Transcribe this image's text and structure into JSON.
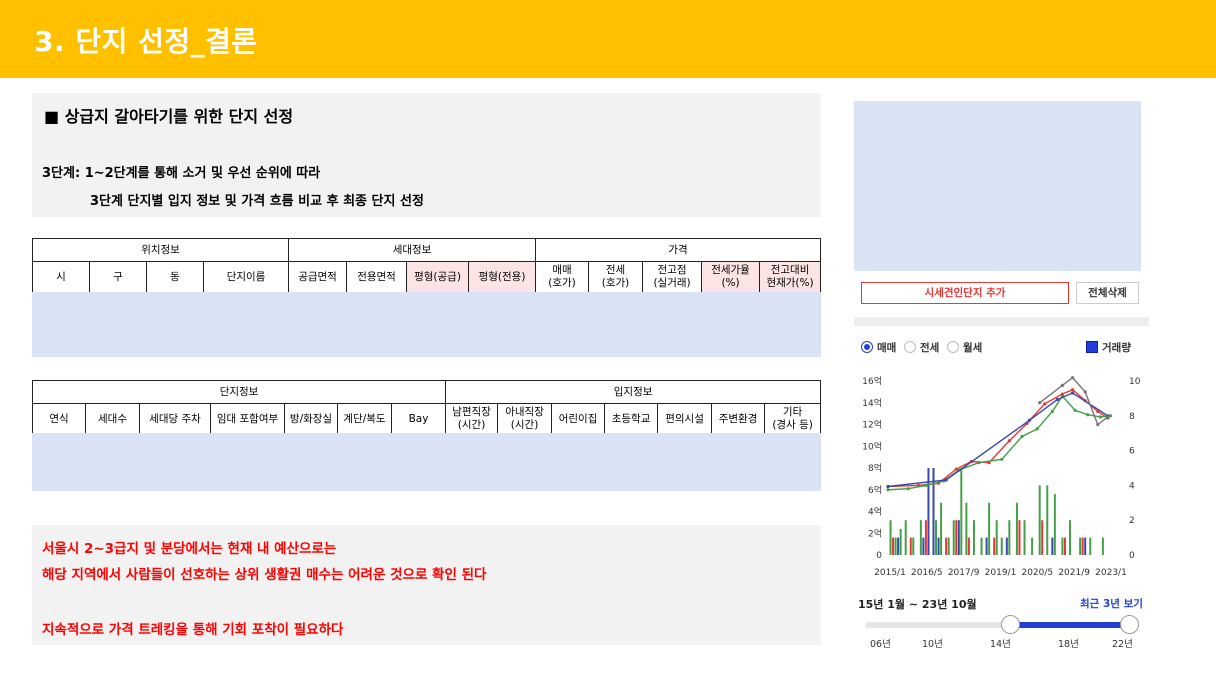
{
  "header": {
    "title": "3. 단지 선정_결론"
  },
  "section": {
    "heading": "■ 상급지 갈아타기를 위한 단지 선정",
    "step_line1": "3단계: 1~2단계를 통해 소거 및 우선 순위에 따라",
    "step_line2": "3단계 단지별 입지 정보 및 가격 흐름 비교 후 최종 단지 선정"
  },
  "table1": {
    "groups": [
      "위치정보",
      "세대정보",
      "가격"
    ],
    "columns": [
      "시",
      "구",
      "동",
      "단지이름",
      "공급면적",
      "전용면적",
      "평형(공급)",
      "평형(전용)",
      "매매\n(호가)",
      "전세\n(호가)",
      "전고점\n(실거래)",
      "전세가율\n(%)",
      "전고대비\n현재가(%)"
    ]
  },
  "table2": {
    "groups": [
      "단지정보",
      "입지정보"
    ],
    "columns": [
      "연식",
      "세대수",
      "세대당 주차",
      "임대 포함여부",
      "방/화장실",
      "계단/복도",
      "Bay",
      "남편직장\n(시간)",
      "아내직장\n(시간)",
      "어린이집",
      "초등학교",
      "편의시설",
      "주변환경",
      "기타\n(경사 등)"
    ]
  },
  "conclusion": {
    "line1": "서울시 2~3급지 및 분당에서는 현재 내 예산으로는",
    "line2": "해당 지역에서 사람들이 선호하는 상위 생활권 매수는 어려운 것으로 확인 된다",
    "line3": "지속적으로 가격 트레킹을 통해 기회 포착이 필요하다"
  },
  "side_panel": {
    "add_button": "시세견인단지 추가",
    "clear_button": "전체삭제",
    "radio_options": [
      "매매",
      "전세",
      "월세"
    ],
    "selected_option": "매매",
    "volume_label": "거래량",
    "period_label": "15년 1월 ~ 23년 10월",
    "recent_link": "최근 3년 보기",
    "slider_ticks": [
      "06년",
      "10년",
      "14년",
      "18년",
      "22년"
    ],
    "slider_range": {
      "from": "14년",
      "to": "22년"
    }
  },
  "colors": {
    "header": "#FFC000",
    "accent_blue": "#1f3fd8",
    "conclusion_red": "#FF0000",
    "placeholder_blue": "#DAE3F3",
    "pink_header": "#FCE4E4"
  },
  "chart_data": {
    "type": "line",
    "left_axis": {
      "ticks": [
        "0",
        "2억",
        "4억",
        "6억",
        "8억",
        "10억",
        "12억",
        "14억",
        "16억"
      ],
      "range": [
        0,
        16
      ]
    },
    "right_axis": {
      "ticks": [
        "0",
        "2",
        "4",
        "6",
        "8",
        "10"
      ],
      "range": [
        0,
        10
      ]
    },
    "x_ticks": [
      "2015/1",
      "2016/5",
      "2017/9",
      "2019/1",
      "2020/5",
      "2021/9",
      "2023/1"
    ],
    "series": [
      {
        "color": "#E53935",
        "x": [
          2015.0,
          2016.2,
          2017.0,
          2017.7,
          2018.3,
          2019.0,
          2019.8,
          2020.5,
          2021.2,
          2021.9,
          2022.3,
          2022.8,
          2023.3,
          2023.7
        ],
        "y": [
          6.3,
          6.4,
          6.6,
          7.9,
          8.6,
          8.5,
          10.5,
          12.1,
          13.9,
          14.8,
          15.2,
          14.2,
          13.2,
          12.6
        ]
      },
      {
        "color": "#43A047",
        "x": [
          2015.0,
          2015.8,
          2016.5,
          2017.2,
          2017.8,
          2018.6,
          2019.5,
          2020.3,
          2020.9,
          2021.5,
          2021.9,
          2022.4,
          2022.9,
          2023.4,
          2023.8
        ],
        "y": [
          6.0,
          6.1,
          6.4,
          6.8,
          7.8,
          8.5,
          8.8,
          10.9,
          11.6,
          13.2,
          14.6,
          13.3,
          12.9,
          12.7,
          12.8
        ]
      },
      {
        "color": "#3949AB",
        "x": [
          2015.0,
          2017.3,
          2020.6,
          2021.7,
          2022.3,
          2023.7
        ],
        "y": [
          6.3,
          6.9,
          12.4,
          14.3,
          14.9,
          12.8
        ]
      },
      {
        "color": "#757575",
        "x": [
          2021.0,
          2021.9,
          2022.3,
          2022.8,
          2023.3,
          2023.7
        ],
        "y": [
          14.0,
          15.6,
          16.3,
          15.0,
          12.0,
          12.7
        ]
      }
    ],
    "volume": [
      {
        "color": "#43A047",
        "x": [
          2015.1,
          2015.3,
          2015.5,
          2015.7,
          2016.0,
          2016.3,
          2016.6,
          2016.9,
          2017.1,
          2017.4,
          2017.6,
          2017.9,
          2018.1,
          2018.4,
          2018.7,
          2019.0,
          2019.3,
          2019.5,
          2019.8,
          2020.1,
          2020.4,
          2020.7,
          2021.0,
          2021.3,
          2021.6,
          2021.9,
          2022.2,
          2022.6,
          2023.0,
          2023.5
        ],
        "v": [
          2.0,
          1.0,
          1.5,
          2.0,
          1.0,
          2.0,
          1.0,
          2.0,
          3.0,
          1.0,
          2.0,
          5.0,
          3.0,
          2.0,
          1.0,
          3.0,
          2.0,
          1.0,
          2.0,
          3.0,
          2.0,
          1.0,
          4.0,
          4.0,
          3.5,
          1.0,
          2.0,
          1.0,
          1.0,
          1.0
        ]
      },
      {
        "color": "#3949AB",
        "x": [
          2015.4,
          2016.4,
          2016.6,
          2016.8,
          2017.0,
          2017.8,
          2018.9,
          2019.7,
          2021.5,
          2022.8
        ],
        "v": [
          1.0,
          1.0,
          5.0,
          5.0,
          1.0,
          2.0,
          1.0,
          1.0,
          1.0,
          1.0
        ]
      },
      {
        "color": "#E53935",
        "x": [
          2015.2,
          2015.9,
          2016.5,
          2017.3,
          2017.7,
          2018.2,
          2019.2,
          2020.2,
          2021.1,
          2022.0,
          2022.7
        ],
        "v": [
          1.0,
          1.0,
          2.0,
          1.0,
          2.0,
          1.0,
          1.0,
          2.0,
          2.0,
          1.0,
          1.0
        ]
      }
    ]
  }
}
